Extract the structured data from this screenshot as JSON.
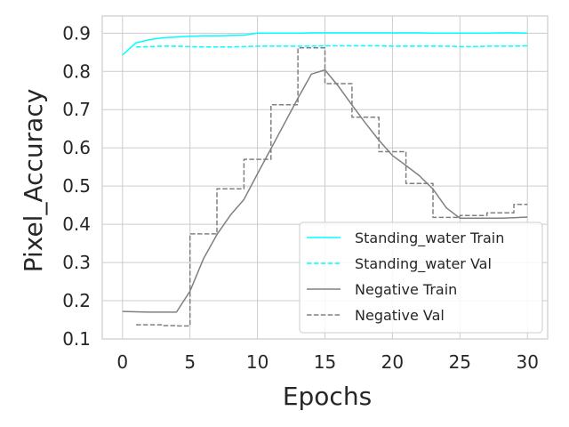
{
  "chart_data": {
    "type": "line",
    "xlabel": "Epochs",
    "ylabel": "Pixel_Accuracy",
    "xlim": [
      -1.5,
      31.5
    ],
    "ylim": [
      0.1,
      0.945
    ],
    "xticks": [
      0,
      5,
      10,
      15,
      20,
      25,
      30
    ],
    "yticks": [
      0.1,
      0.2,
      0.3,
      0.4,
      0.5,
      0.6,
      0.7,
      0.8,
      0.9
    ],
    "grid": true,
    "legend_position": "lower-right",
    "series": [
      {
        "name": "Standing_water Train",
        "color": "#00ffff",
        "dash": "solid",
        "x": [
          0,
          1,
          2,
          3,
          4,
          5,
          6,
          7,
          8,
          9,
          10,
          11,
          12,
          13,
          14,
          15,
          16,
          17,
          18,
          19,
          20,
          21,
          22,
          23,
          24,
          25,
          26,
          27,
          28,
          29,
          30
        ],
        "values": [
          0.843,
          0.875,
          0.883,
          0.888,
          0.89,
          0.892,
          0.893,
          0.893,
          0.894,
          0.895,
          0.9,
          0.9,
          0.9,
          0.9,
          0.901,
          0.901,
          0.901,
          0.901,
          0.901,
          0.901,
          0.901,
          0.901,
          0.901,
          0.9,
          0.9,
          0.9,
          0.9,
          0.9,
          0.901,
          0.901,
          0.9
        ]
      },
      {
        "name": "Standing_water Val",
        "color": "#00ffff",
        "dash": "dashed",
        "x": [
          1,
          2,
          3,
          4,
          5,
          6,
          7,
          8,
          9,
          10,
          11,
          12,
          13,
          14,
          15,
          16,
          17,
          18,
          19,
          20,
          21,
          22,
          23,
          24,
          25,
          26,
          27,
          28,
          29,
          30
        ],
        "values": [
          0.864,
          0.865,
          0.866,
          0.866,
          0.865,
          0.864,
          0.864,
          0.864,
          0.865,
          0.866,
          0.866,
          0.866,
          0.866,
          0.866,
          0.867,
          0.867,
          0.867,
          0.867,
          0.867,
          0.866,
          0.866,
          0.866,
          0.866,
          0.866,
          0.865,
          0.865,
          0.866,
          0.866,
          0.866,
          0.867
        ]
      },
      {
        "name": "Negative Train",
        "color": "#808080",
        "dash": "solid",
        "x": [
          0,
          1,
          2,
          3,
          4,
          5,
          6,
          7,
          8,
          9,
          10,
          11,
          12,
          13,
          14,
          15,
          16,
          17,
          18,
          19,
          20,
          21,
          22,
          23,
          24,
          25,
          26,
          27,
          28,
          29,
          30
        ],
        "values": [
          0.172,
          0.171,
          0.17,
          0.17,
          0.17,
          0.225,
          0.31,
          0.373,
          0.424,
          0.465,
          0.532,
          0.598,
          0.664,
          0.73,
          0.793,
          0.804,
          0.761,
          0.712,
          0.665,
          0.62,
          0.58,
          0.554,
          0.527,
          0.492,
          0.443,
          0.416,
          0.416,
          0.416,
          0.416,
          0.417,
          0.419
        ]
      },
      {
        "name": "Negative Val",
        "color": "#808080",
        "dash": "dashed",
        "steps": true,
        "x": [
          1,
          2,
          3,
          4,
          5,
          6,
          7,
          8,
          9,
          10,
          11,
          12,
          13,
          14,
          15,
          16,
          17,
          18,
          19,
          20,
          21,
          22,
          23,
          24,
          25,
          26,
          27,
          28,
          29,
          30
        ],
        "values": [
          0.137,
          0.137,
          0.135,
          0.134,
          0.375,
          0.375,
          0.493,
          0.493,
          0.57,
          0.57,
          0.713,
          0.713,
          0.862,
          0.862,
          0.768,
          0.768,
          0.68,
          0.68,
          0.59,
          0.59,
          0.507,
          0.507,
          0.418,
          0.418,
          0.423,
          0.423,
          0.43,
          0.43,
          0.452,
          0.452
        ]
      }
    ]
  }
}
